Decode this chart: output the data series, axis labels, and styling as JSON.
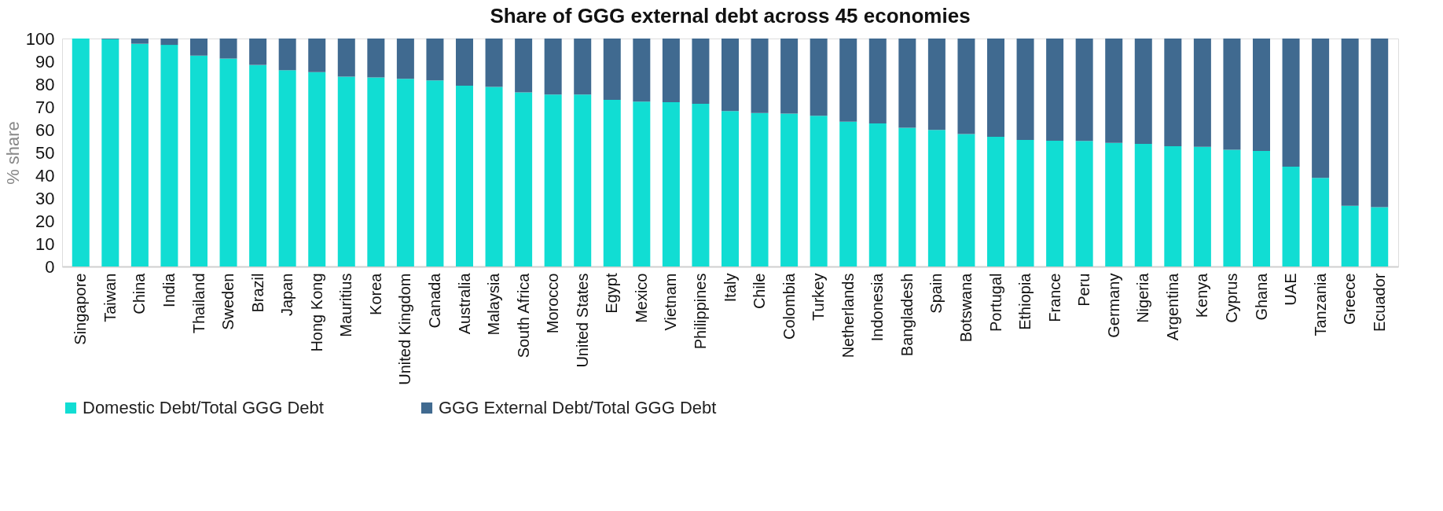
{
  "chart_data": {
    "type": "bar",
    "title": "Share of GGG external debt across 45 economies",
    "ylabel": "% share",
    "stacked": true,
    "categories": [
      "Singapore",
      "Taiwan",
      "China",
      "India",
      "Thailand",
      "Sweden",
      "Brazil",
      "Japan",
      "Hong Kong",
      "Mauritius",
      "Korea",
      "United Kingdom",
      "Canada",
      "Australia",
      "Malaysia",
      "South Africa",
      "Morocco",
      "United States",
      "Egypt",
      "Mexico",
      "Vietnam",
      "Philippines",
      "Italy",
      "Chile",
      "Colombia",
      "Turkey",
      "Netherlands",
      "Indonesia",
      "Bangladesh",
      "Spain",
      "Botswana",
      "Portugal",
      "Ethiopia",
      "France",
      "Peru",
      "Germany",
      "Nigeria",
      "Argentina",
      "Kenya",
      "Cyprus",
      "Ghana",
      "UAE",
      "Tanzania",
      "Greece",
      "Ecuador"
    ],
    "series": [
      {
        "name": "Domestic Debt/Total GGG Debt",
        "color": "#11ddd3",
        "values": [
          100,
          99.7,
          97.7,
          97.2,
          92.5,
          91.2,
          88.4,
          86.1,
          85.3,
          83.3,
          82.9,
          82.3,
          81.6,
          79.3,
          78.8,
          76.4,
          75.4,
          75.4,
          73.1,
          72.3,
          72.1,
          71.4,
          68.2,
          67.3,
          67.1,
          66.1,
          63.5,
          62.8,
          60.9,
          59.9,
          58.1,
          56.9,
          55.5,
          55.2,
          55.1,
          54.2,
          53.8,
          52.8,
          52.5,
          51.2,
          50.7,
          43.8,
          38.9,
          26.6,
          26.0
        ]
      },
      {
        "name": "GGG External Debt/Total GGG Debt",
        "color": "#406a90",
        "values": [
          0,
          0.3,
          2.3,
          2.8,
          7.5,
          8.8,
          11.6,
          13.9,
          14.7,
          16.7,
          17.1,
          17.7,
          18.4,
          20.7,
          21.2,
          23.6,
          24.6,
          24.6,
          26.9,
          27.7,
          27.9,
          28.6,
          31.8,
          32.7,
          32.9,
          33.9,
          36.5,
          37.2,
          39.1,
          40.1,
          41.9,
          43.1,
          44.5,
          44.8,
          44.9,
          45.8,
          46.2,
          47.2,
          47.5,
          48.8,
          49.3,
          56.2,
          61.1,
          73.4,
          74.0
        ]
      }
    ],
    "ylim": [
      0,
      100
    ],
    "yticks": [
      0,
      10,
      20,
      30,
      40,
      50,
      60,
      70,
      80,
      90,
      100
    ],
    "grid": false,
    "legend": "bottom"
  }
}
